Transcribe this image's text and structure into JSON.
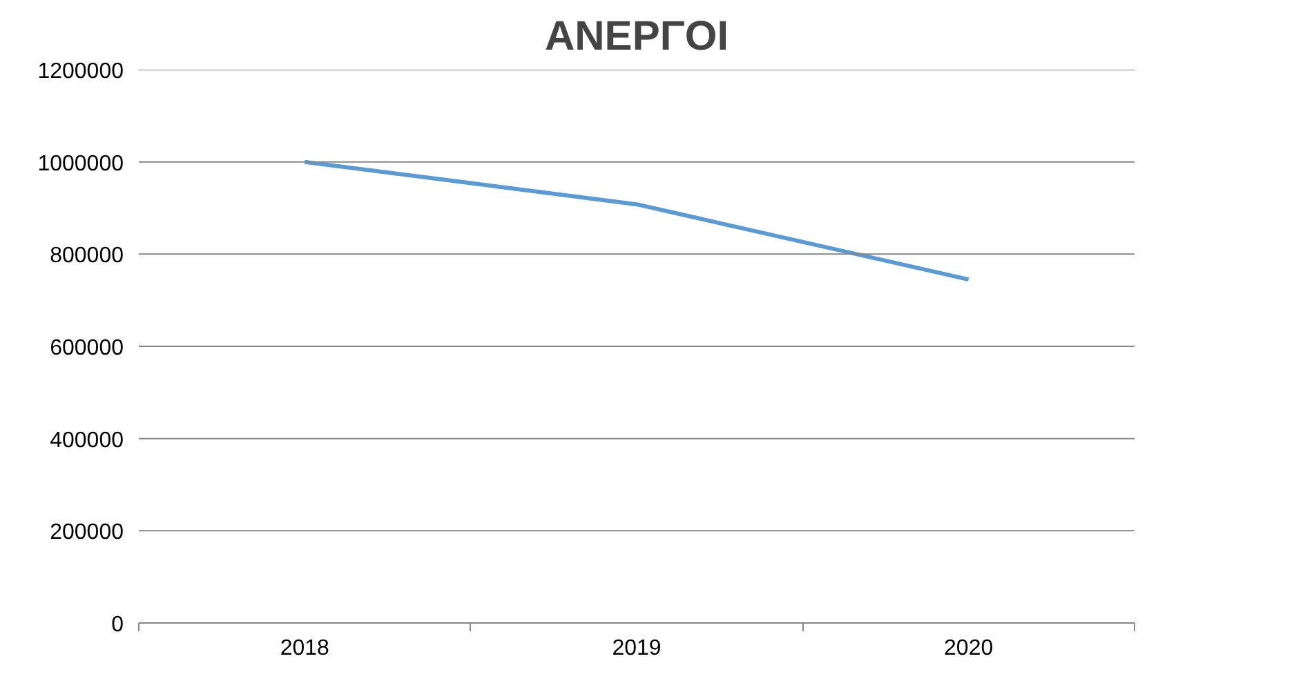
{
  "chart_data": {
    "type": "line",
    "title": "ΑΝΕΡΓΟΙ",
    "categories": [
      "2018",
      "2019",
      "2020"
    ],
    "series": [
      {
        "color": "#5b9bd5",
        "values": [
          1000000,
          908000,
          745000
        ]
      }
    ],
    "ylim": [
      0,
      1200000
    ],
    "yticks": [
      0,
      200000,
      400000,
      600000,
      800000,
      1000000,
      1200000
    ],
    "grid": "y",
    "marker": "none",
    "line_style": "solid"
  }
}
